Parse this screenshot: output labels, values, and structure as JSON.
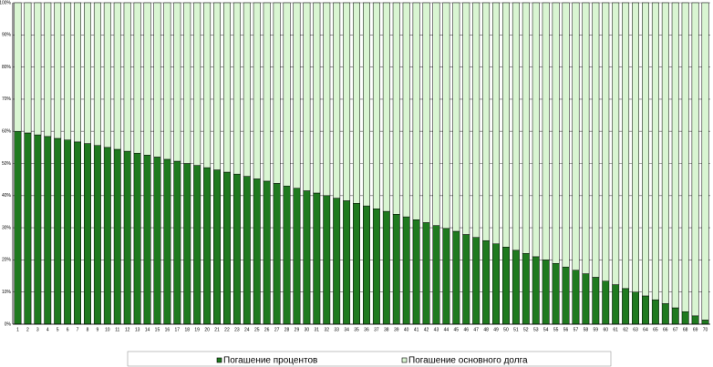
{
  "chart_data": {
    "type": "stacked_bar_percent",
    "categories": [
      "1",
      "2",
      "3",
      "4",
      "5",
      "6",
      "7",
      "8",
      "9",
      "10",
      "11",
      "12",
      "13",
      "14",
      "15",
      "16",
      "17",
      "18",
      "19",
      "20",
      "21",
      "22",
      "23",
      "24",
      "25",
      "26",
      "27",
      "28",
      "29",
      "30",
      "31",
      "32",
      "33",
      "34",
      "35",
      "36",
      "37",
      "38",
      "39",
      "40",
      "41",
      "42",
      "43",
      "44",
      "45",
      "46",
      "47",
      "48",
      "49",
      "50",
      "51",
      "52",
      "53",
      "54",
      "55",
      "56",
      "57",
      "58",
      "59",
      "60",
      "61",
      "62",
      "63",
      "64",
      "65",
      "66",
      "67",
      "68",
      "69",
      "70"
    ],
    "series": [
      {
        "name": "Погашение процентов",
        "color": "#1f7a1f",
        "values": [
          60.0,
          59.5,
          58.9,
          58.4,
          57.8,
          57.3,
          56.7,
          56.2,
          55.6,
          55.0,
          54.4,
          53.8,
          53.2,
          52.6,
          52.0,
          51.3,
          50.7,
          50.0,
          49.4,
          48.7,
          48.0,
          47.3,
          46.7,
          46.0,
          45.2,
          44.5,
          43.8,
          43.0,
          42.3,
          41.5,
          40.8,
          40.0,
          39.2,
          38.4,
          37.6,
          36.8,
          35.9,
          35.1,
          34.2,
          33.4,
          32.5,
          31.6,
          30.7,
          29.8,
          28.9,
          27.9,
          27.0,
          26.0,
          25.0,
          24.0,
          23.0,
          22.0,
          21.0,
          20.0,
          18.9,
          17.8,
          16.8,
          15.7,
          14.6,
          13.4,
          12.3,
          11.1,
          10.0,
          8.8,
          7.6,
          6.4,
          5.1,
          3.9,
          2.6,
          1.3
        ]
      },
      {
        "name": "Погашение основного долга",
        "color": "#d9f5d2",
        "values": [
          40.0,
          40.5,
          41.1,
          41.6,
          42.2,
          42.7,
          43.3,
          43.8,
          44.4,
          45.0,
          45.6,
          46.2,
          46.8,
          47.4,
          48.0,
          48.7,
          49.3,
          50.0,
          50.6,
          51.3,
          52.0,
          52.7,
          53.3,
          54.0,
          54.8,
          55.5,
          56.2,
          57.0,
          57.7,
          58.5,
          59.2,
          60.0,
          60.8,
          61.6,
          62.4,
          63.2,
          64.1,
          64.9,
          65.8,
          66.6,
          67.5,
          68.4,
          69.3,
          70.2,
          71.1,
          72.1,
          73.0,
          74.0,
          75.0,
          76.0,
          77.0,
          78.0,
          79.0,
          80.0,
          81.1,
          82.2,
          83.2,
          84.3,
          85.4,
          86.6,
          87.7,
          88.9,
          90.0,
          91.2,
          92.4,
          93.6,
          94.9,
          96.1,
          97.4,
          98.7
        ]
      }
    ],
    "ylim": [
      0,
      100
    ],
    "yticks": [
      {
        "value": 0,
        "label": "0%"
      },
      {
        "value": 10,
        "label": "10%"
      },
      {
        "value": 20,
        "label": "20%"
      },
      {
        "value": 30,
        "label": "30%"
      },
      {
        "value": 40,
        "label": "40%"
      },
      {
        "value": 50,
        "label": "50%"
      },
      {
        "value": 60,
        "label": "60%"
      },
      {
        "value": 70,
        "label": "70%"
      },
      {
        "value": 80,
        "label": "80%"
      },
      {
        "value": 90,
        "label": "90%"
      },
      {
        "value": 100,
        "label": "100%"
      }
    ],
    "grid": true,
    "legend": "bottom"
  }
}
